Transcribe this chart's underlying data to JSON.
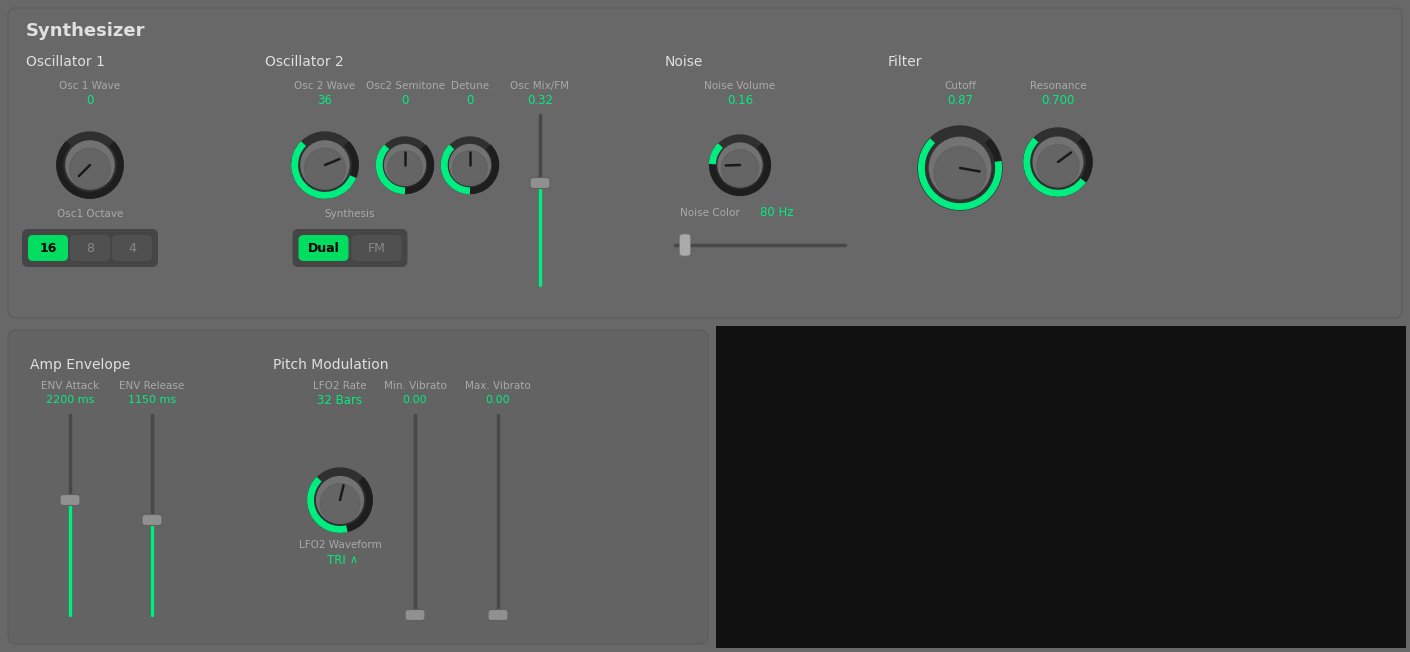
{
  "bg_color": "#686868",
  "bg_bottom_color": "#636363",
  "bg_black": "#111111",
  "knob_ring": "#303030",
  "knob_face": "#727272",
  "knob_shadow": "#5a5a5a",
  "green": "#00ee80",
  "text_white": "#e0e0e0",
  "text_gray": "#aaaaaa",
  "text_green": "#00ee80",
  "btn_green": "#00dd60",
  "btn_dark": "#505050",
  "btn_bg": "#444444",
  "slider_track": "#484848",
  "slider_handle": "#909090",
  "title": "Synthesizer",
  "s1": "Oscillator 1",
  "s2": "Oscillator 2",
  "s3": "Noise",
  "s4": "Filter",
  "s5": "Amp Envelope",
  "s6": "Pitch Modulation",
  "osc1_wave_lbl": "Osc 1 Wave",
  "osc1_wave_val": "0",
  "osc1_oct_lbl": "Osc1 Octave",
  "osc1_btns": [
    "16",
    "8",
    "4"
  ],
  "osc2_wave_lbl": "Osc 2 Wave",
  "osc2_wave_val": "36",
  "osc2_semi_lbl": "Osc2 Semitone",
  "osc2_semi_val": "0",
  "osc2_det_lbl": "Detune",
  "osc2_det_val": "0",
  "osc_mix_lbl": "Osc Mix/FM",
  "osc_mix_val": "0.32",
  "synth_lbl": "Synthesis",
  "synth_btns": [
    "Dual",
    "FM"
  ],
  "nv_lbl": "Noise Volume",
  "nv_val": "0.16",
  "nc_lbl": "Noise Color",
  "nc_val": "80 Hz",
  "cutoff_lbl": "Cutoff",
  "cutoff_val": "0.87",
  "res_lbl": "Resonance",
  "res_val": "0.700",
  "atk_lbl": "ENV Attack",
  "atk_val": "2200 ms",
  "rel_lbl": "ENV Release",
  "rel_val": "1150 ms",
  "lfo_rate_lbl": "LFO2 Rate",
  "lfo_rate_val": "32 Bars",
  "lfo_wave_lbl": "LFO2 Waveform",
  "lfo_wave_val": "TRI",
  "min_vib_lbl": "Min. Vibrato",
  "min_vib_val": "0.00",
  "max_vib_lbl": "Max. Vibrato",
  "max_vib_val": "0.00"
}
